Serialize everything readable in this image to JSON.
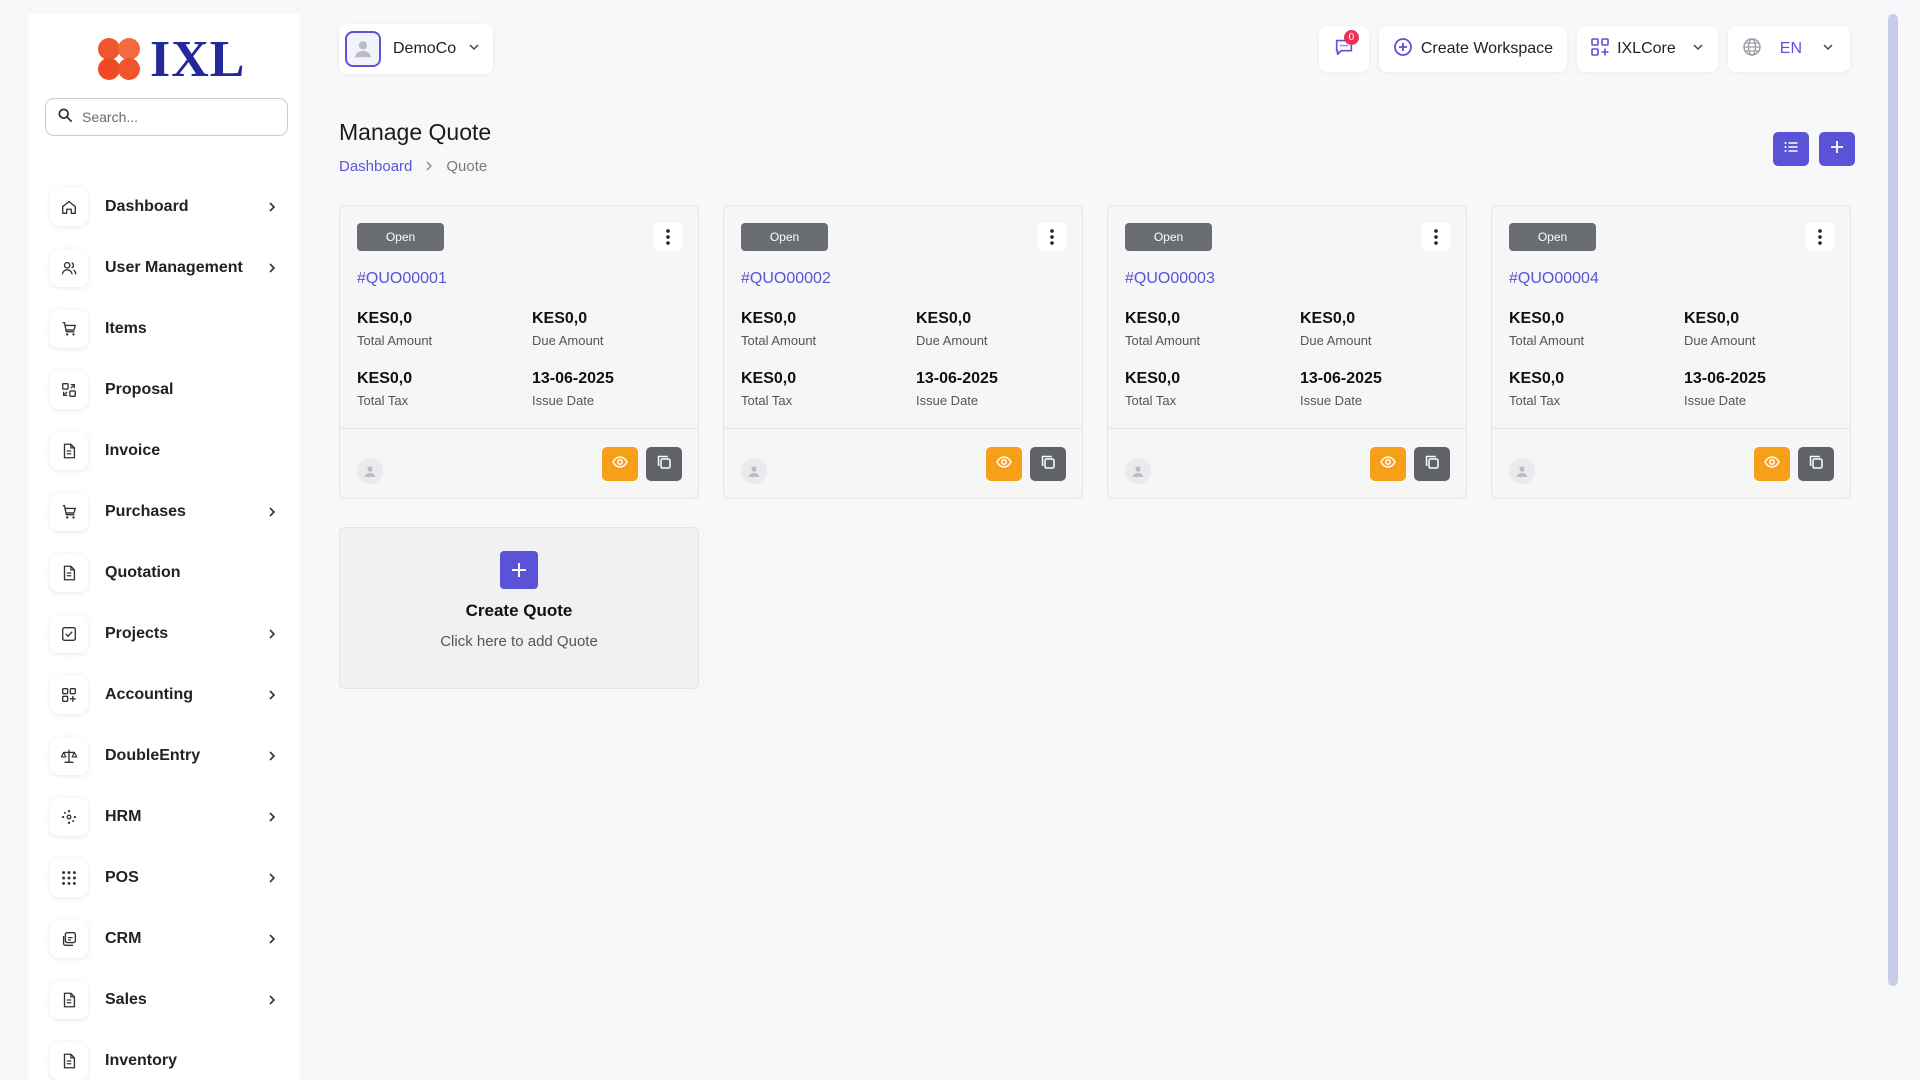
{
  "brand": {
    "name": "IXL"
  },
  "search": {
    "placeholder": "Search..."
  },
  "sidebar": {
    "items": [
      {
        "label": "Dashboard",
        "icon": "home-icon",
        "expandable": true
      },
      {
        "label": "User Management",
        "icon": "users-icon",
        "expandable": true
      },
      {
        "label": "Items",
        "icon": "cart-icon",
        "expandable": false
      },
      {
        "label": "Proposal",
        "icon": "proposal-icon",
        "expandable": false
      },
      {
        "label": "Invoice",
        "icon": "file-icon",
        "expandable": false
      },
      {
        "label": "Purchases",
        "icon": "cart-icon",
        "expandable": true
      },
      {
        "label": "Quotation",
        "icon": "file-icon",
        "expandable": false
      },
      {
        "label": "Projects",
        "icon": "checkbox-icon",
        "expandable": true
      },
      {
        "label": "Accounting",
        "icon": "apps-icon",
        "expandable": true
      },
      {
        "label": "DoubleEntry",
        "icon": "scale-icon",
        "expandable": true
      },
      {
        "label": "HRM",
        "icon": "hrm-icon",
        "expandable": true
      },
      {
        "label": "POS",
        "icon": "grid-dots-icon",
        "expandable": true
      },
      {
        "label": "CRM",
        "icon": "layers-icon",
        "expandable": true
      },
      {
        "label": "Sales",
        "icon": "file-icon",
        "expandable": true
      },
      {
        "label": "Inventory",
        "icon": "file-icon",
        "expandable": false
      }
    ]
  },
  "header": {
    "workspace": "DemoCo",
    "notifications_count": "0",
    "create_workspace": "Create Workspace",
    "app_switcher": "IXLCore",
    "language": "EN"
  },
  "page": {
    "title": "Manage Quote",
    "breadcrumb": [
      "Dashboard",
      "Quote"
    ]
  },
  "labels": {
    "total_amount": "Total Amount",
    "due_amount": "Due Amount",
    "total_tax": "Total Tax",
    "issue_date": "Issue Date"
  },
  "quotes": [
    {
      "status": "Open",
      "id": "#QUO00001",
      "total_amount": "KES0,0",
      "due_amount": "KES0,0",
      "total_tax": "KES0,0",
      "issue_date": "13-06-2025"
    },
    {
      "status": "Open",
      "id": "#QUO00002",
      "total_amount": "KES0,0",
      "due_amount": "KES0,0",
      "total_tax": "KES0,0",
      "issue_date": "13-06-2025"
    },
    {
      "status": "Open",
      "id": "#QUO00003",
      "total_amount": "KES0,0",
      "due_amount": "KES0,0",
      "total_tax": "KES0,0",
      "issue_date": "13-06-2025"
    },
    {
      "status": "Open",
      "id": "#QUO00004",
      "total_amount": "KES0,0",
      "due_amount": "KES0,0",
      "total_tax": "KES0,0",
      "issue_date": "13-06-2025"
    }
  ],
  "create_card": {
    "title": "Create Quote",
    "subtitle": "Click here to add Quote"
  },
  "colors": {
    "accent": "#5a53d8",
    "view_button": "#f6a019",
    "copy_button": "#5f6266",
    "status_pill": "#6a6d72",
    "notification_badge": "#e8325a",
    "logo_orange": "#f0552d",
    "logo_navy": "#24299a"
  }
}
